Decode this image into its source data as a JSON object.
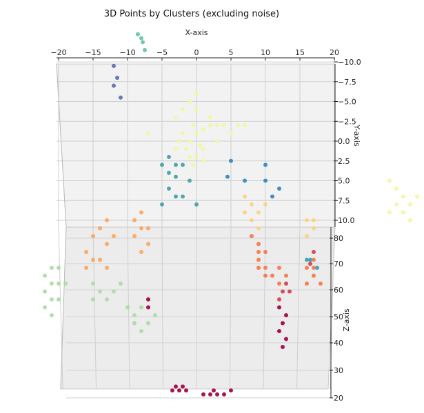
{
  "chart_data": {
    "type": "scatter",
    "projection": "3d",
    "title": "3D Points by Clusters (excluding noise)",
    "xlabel": "X-axis",
    "ylabel": "Y-axis",
    "zlabel": "Z-axis",
    "x_ticks": [
      "−20",
      "−15",
      "−10",
      "−5",
      "0",
      "5",
      "10",
      "15",
      "20"
    ],
    "y_ticks": [
      "−10.0",
      "−7.5",
      "−5.0",
      "−2.5",
      "0.0",
      "2.5",
      "5.0",
      "7.5",
      "10.0"
    ],
    "z_ticks": [
      "20",
      "30",
      "40",
      "50",
      "60",
      "70",
      "80"
    ],
    "xlim": [
      -20,
      20
    ],
    "ylim": [
      -10,
      10
    ],
    "zlim": [
      20,
      85
    ],
    "grid": true,
    "colormap": "Spectral",
    "clusters": [
      {
        "id": "dark-blue",
        "color": "#5e6db4",
        "points": [
          [
            -12,
            -9.5,
            80
          ],
          [
            -11.5,
            -8,
            80
          ],
          [
            -12,
            -7,
            80
          ],
          [
            -11,
            -5.5,
            80
          ]
        ]
      },
      {
        "id": "teal-top",
        "color": "#66c2a5",
        "points": [
          [
            -8,
            -13,
            80
          ],
          [
            -8.5,
            -13.5,
            80
          ],
          [
            -7.8,
            -12.5,
            80
          ],
          [
            -7.5,
            -11.5,
            80
          ]
        ]
      },
      {
        "id": "light-yellow-center",
        "color": "#f1f7a2",
        "points": [
          [
            -2,
            -1,
            80
          ],
          [
            -1,
            0,
            80
          ],
          [
            0,
            -1,
            80
          ],
          [
            -1.5,
            1,
            80
          ],
          [
            0.5,
            0.5,
            80
          ],
          [
            -0.5,
            -2,
            80
          ],
          [
            1,
            -1.5,
            80
          ],
          [
            2,
            -2,
            80
          ],
          [
            3,
            -2,
            80
          ],
          [
            -2.5,
            0,
            80
          ],
          [
            0,
            2,
            80
          ],
          [
            -1,
            2,
            80
          ],
          [
            1,
            1,
            80
          ],
          [
            -3,
            -3,
            80
          ],
          [
            2,
            -3,
            80
          ],
          [
            4,
            -2,
            80
          ],
          [
            5,
            -1,
            80
          ],
          [
            6,
            -2,
            80
          ],
          [
            -2,
            -4,
            80
          ],
          [
            0,
            -4,
            80
          ],
          [
            3,
            0,
            80
          ],
          [
            -3,
            1,
            80
          ],
          [
            1,
            2.5,
            80
          ],
          [
            -0.5,
            3,
            80
          ],
          [
            -1,
            -5,
            80
          ],
          [
            0,
            -6,
            80
          ],
          [
            -7,
            -1,
            80
          ],
          [
            7,
            -2,
            80
          ]
        ]
      },
      {
        "id": "light-yellow-right",
        "color": "#f1f7a2",
        "points": [
          [
            28,
            5,
            80
          ],
          [
            29,
            6,
            80
          ],
          [
            30,
            7,
            80
          ],
          [
            31,
            8,
            80
          ],
          [
            29,
            8,
            80
          ],
          [
            30,
            9,
            80
          ],
          [
            32,
            7,
            80
          ],
          [
            28,
            9,
            80
          ],
          [
            31,
            10,
            80
          ],
          [
            33,
            8,
            80
          ]
        ]
      },
      {
        "id": "teal-mid",
        "color": "#47a0a8",
        "points": [
          [
            -5,
            3,
            80
          ],
          [
            -4,
            4,
            80
          ],
          [
            -3,
            4.5,
            80
          ],
          [
            -2,
            3,
            80
          ],
          [
            -1,
            5,
            80
          ],
          [
            -4,
            6,
            80
          ],
          [
            -3,
            7,
            80
          ],
          [
            -5,
            8,
            80
          ],
          [
            -2,
            7,
            80
          ],
          [
            0,
            8,
            80
          ],
          [
            -4,
            2,
            80
          ],
          [
            -3,
            3,
            80
          ]
        ]
      },
      {
        "id": "blue-right",
        "color": "#3288bd",
        "points": [
          [
            5,
            2.5,
            80
          ],
          [
            4.5,
            4.5,
            80
          ],
          [
            7,
            5,
            80
          ],
          [
            10,
            3,
            80
          ],
          [
            10,
            5,
            80
          ],
          [
            12,
            6,
            80
          ],
          [
            11,
            7,
            80
          ]
        ]
      },
      {
        "id": "light-orange",
        "color": "#fdd17e",
        "points": [
          [
            7,
            7,
            80
          ],
          [
            8,
            8,
            80
          ],
          [
            9,
            9,
            80
          ],
          [
            10,
            8,
            80
          ],
          [
            8,
            10,
            80
          ],
          [
            9,
            11,
            80
          ],
          [
            7,
            9,
            80
          ],
          [
            16,
            10,
            80
          ],
          [
            17,
            11,
            80
          ],
          [
            16,
            12,
            80
          ],
          [
            17,
            10,
            80
          ]
        ]
      },
      {
        "id": "orange-left",
        "color": "#fca55d",
        "points": [
          [
            -13,
            10,
            72
          ],
          [
            -14,
            11,
            72
          ],
          [
            -12,
            12,
            72
          ],
          [
            -13,
            13,
            72
          ],
          [
            -15,
            12,
            72
          ],
          [
            -16,
            14,
            72
          ],
          [
            -15,
            15,
            72
          ],
          [
            -14,
            15,
            72
          ],
          [
            -16,
            16,
            72
          ],
          [
            -13,
            16,
            72
          ],
          [
            -8,
            9,
            72
          ],
          [
            -9,
            10,
            72
          ],
          [
            -8,
            11,
            72
          ],
          [
            -9,
            12,
            72
          ],
          [
            -7,
            13,
            72
          ],
          [
            -8,
            14,
            72
          ],
          [
            -7,
            11,
            72
          ]
        ]
      },
      {
        "id": "orange-right",
        "color": "#f57748",
        "points": [
          [
            8,
            12,
            72
          ],
          [
            9,
            13,
            72
          ],
          [
            9,
            14,
            72
          ],
          [
            10,
            14,
            72
          ],
          [
            9,
            15,
            72
          ],
          [
            10,
            16,
            72
          ],
          [
            9,
            16,
            72
          ],
          [
            10,
            17,
            72
          ],
          [
            11,
            17,
            72
          ],
          [
            12,
            16,
            72
          ],
          [
            12,
            18,
            72
          ],
          [
            13,
            17,
            72
          ],
          [
            17,
            15,
            72
          ],
          [
            16,
            16,
            72
          ],
          [
            17,
            16,
            72
          ],
          [
            17,
            17,
            72
          ],
          [
            16,
            18,
            72
          ],
          [
            18,
            18,
            72
          ]
        ]
      },
      {
        "id": "red-right",
        "color": "#d53e4f",
        "points": [
          [
            13,
            18,
            65
          ],
          [
            12.5,
            19,
            65
          ],
          [
            13.5,
            19,
            65
          ],
          [
            12,
            20,
            65
          ],
          [
            17,
            14,
            65
          ],
          [
            16.5,
            15.5,
            65
          ]
        ]
      },
      {
        "id": "teal-right",
        "color": "#3a9fb0",
        "points": [
          [
            16,
            15,
            65
          ],
          [
            16.5,
            15,
            65
          ],
          [
            17.5,
            16,
            65
          ]
        ]
      },
      {
        "id": "light-green-left",
        "color": "#a8dd9f",
        "points": [
          [
            -21,
            16,
            62
          ],
          [
            -22,
            17,
            62
          ],
          [
            -21,
            18,
            62
          ],
          [
            -22,
            19,
            62
          ],
          [
            -20,
            18,
            62
          ],
          [
            -21,
            20,
            62
          ],
          [
            -20,
            20,
            62
          ],
          [
            -22,
            21,
            62
          ],
          [
            -20,
            16,
            62
          ],
          [
            -19,
            18,
            62
          ],
          [
            -21,
            22,
            62
          ]
        ]
      },
      {
        "id": "light-green-mid",
        "color": "#a8dd9f",
        "points": [
          [
            -15,
            18,
            62
          ],
          [
            -14,
            19,
            62
          ],
          [
            -15,
            20,
            62
          ],
          [
            -13,
            20,
            62
          ],
          [
            -12,
            19,
            62
          ],
          [
            -11,
            18,
            62
          ],
          [
            -10,
            21,
            62
          ],
          [
            -9,
            22,
            62
          ],
          [
            -8,
            21,
            62
          ],
          [
            -7,
            20,
            62
          ],
          [
            -6,
            22,
            62
          ],
          [
            -9,
            23,
            62
          ],
          [
            -8,
            24,
            62
          ],
          [
            -7,
            23,
            62
          ]
        ]
      },
      {
        "id": "crimson",
        "color": "#9e0142",
        "points": [
          [
            -7,
            20,
            55
          ],
          [
            -7,
            21,
            55
          ],
          [
            12,
            21,
            55
          ],
          [
            13,
            22,
            55
          ],
          [
            12.5,
            23,
            55
          ],
          [
            12,
            24,
            55
          ],
          [
            13,
            25,
            55
          ],
          [
            12.5,
            26,
            55
          ],
          [
            -3,
            31,
            25
          ],
          [
            -2.5,
            31.5,
            25
          ],
          [
            -2,
            31,
            25
          ],
          [
            -1.5,
            31.5,
            25
          ],
          [
            -3.5,
            31.5,
            25
          ],
          [
            1,
            32,
            25
          ],
          [
            2,
            32,
            25
          ],
          [
            3,
            32,
            25
          ],
          [
            4,
            32,
            25
          ],
          [
            5,
            31.5,
            25
          ],
          [
            2.5,
            31.5,
            25
          ]
        ]
      }
    ]
  }
}
